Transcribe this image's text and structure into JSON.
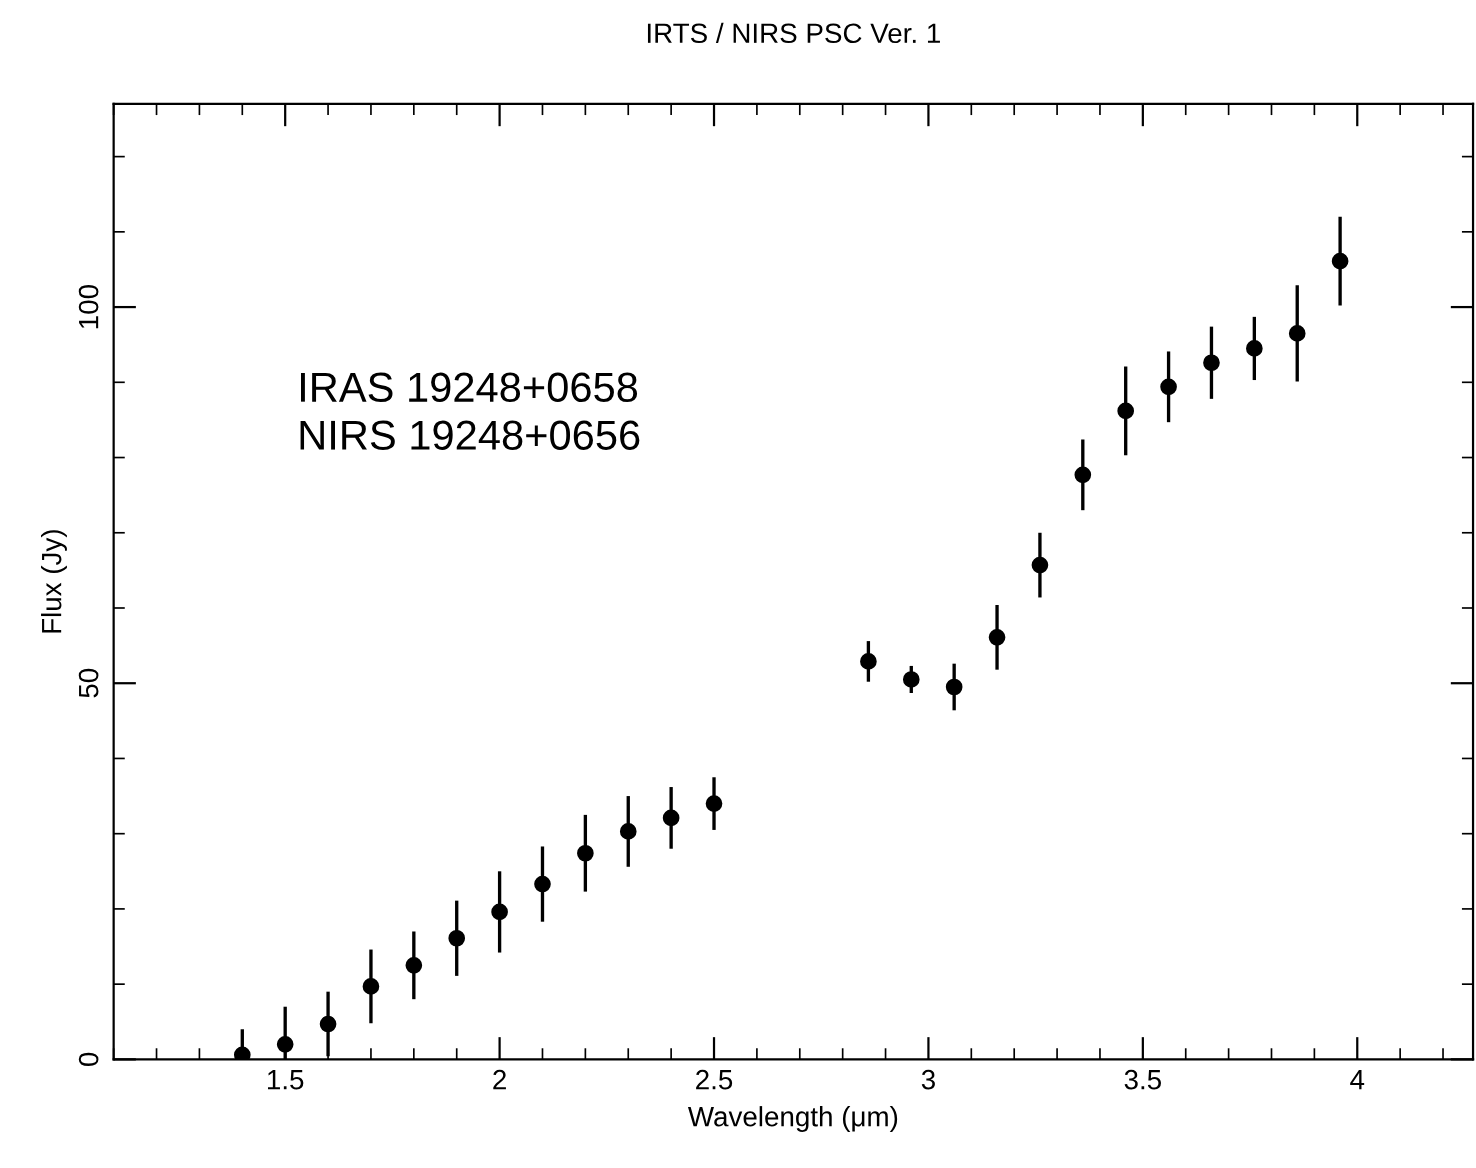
{
  "chart_data": {
    "type": "scatter",
    "title": "IRTS / NIRS PSC Ver. 1",
    "xlabel": "Wavelength (μm)",
    "ylabel": "Flux (Jy)",
    "annotations": [
      "IRAS 19248+0658",
      "NIRS 19248+0656"
    ],
    "x": [
      1.4,
      1.5,
      1.6,
      1.7,
      1.8,
      1.9,
      2.0,
      2.1,
      2.2,
      2.3,
      2.4,
      2.5,
      2.86,
      2.96,
      3.06,
      3.16,
      3.26,
      3.36,
      3.46,
      3.56,
      3.66,
      3.76,
      3.86,
      3.96
    ],
    "series": [
      {
        "color": "#000000",
        "values": [
          0.6,
          2.0,
          4.7,
          9.7,
          12.5,
          16.1,
          19.6,
          23.3,
          27.4,
          30.3,
          32.1,
          34.0,
          52.9,
          50.5,
          49.5,
          56.1,
          65.7,
          77.7,
          86.2,
          89.4,
          92.6,
          94.5,
          96.5,
          106.1
        ],
        "errors": [
          3.4,
          5.0,
          4.3,
          4.9,
          4.5,
          5.0,
          5.4,
          5.0,
          5.1,
          4.7,
          4.1,
          3.5,
          2.7,
          1.8,
          3.1,
          4.3,
          4.3,
          4.7,
          5.9,
          4.7,
          4.8,
          4.2,
          6.4,
          5.9
        ]
      }
    ],
    "marker": "circle",
    "xlim": [
      1.1,
      4.27
    ],
    "ylim": [
      0,
      127
    ],
    "xticks": [
      1.5,
      2,
      2.5,
      3,
      3.5,
      4
    ],
    "yticks": [
      0,
      50,
      100
    ],
    "grid": false,
    "legend": false
  }
}
